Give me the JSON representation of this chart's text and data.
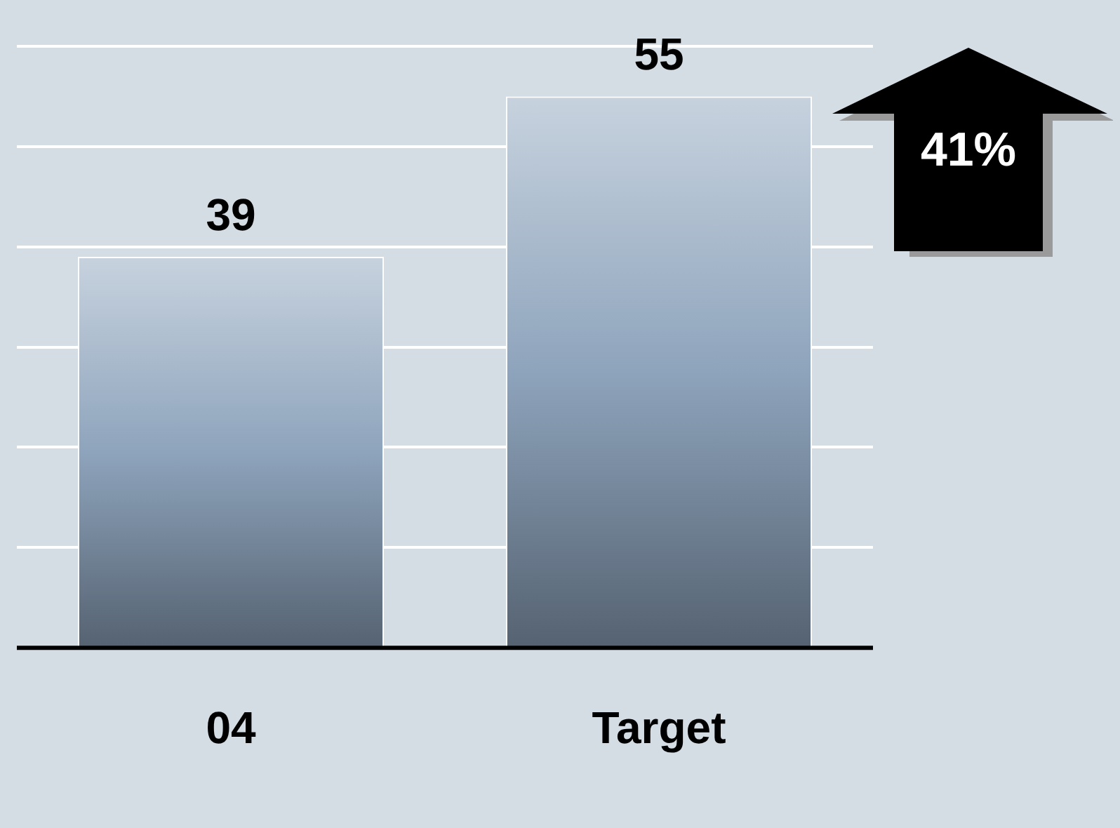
{
  "chart_data": {
    "type": "bar",
    "categories": [
      "04",
      "Target"
    ],
    "values": [
      39,
      55
    ],
    "color": "#8ea4bc",
    "ylim": [
      0,
      60
    ],
    "tick_labels": "x",
    "grid": "y",
    "legend": false,
    "data_labels": true,
    "annotations": [
      "41%"
    ]
  }
}
